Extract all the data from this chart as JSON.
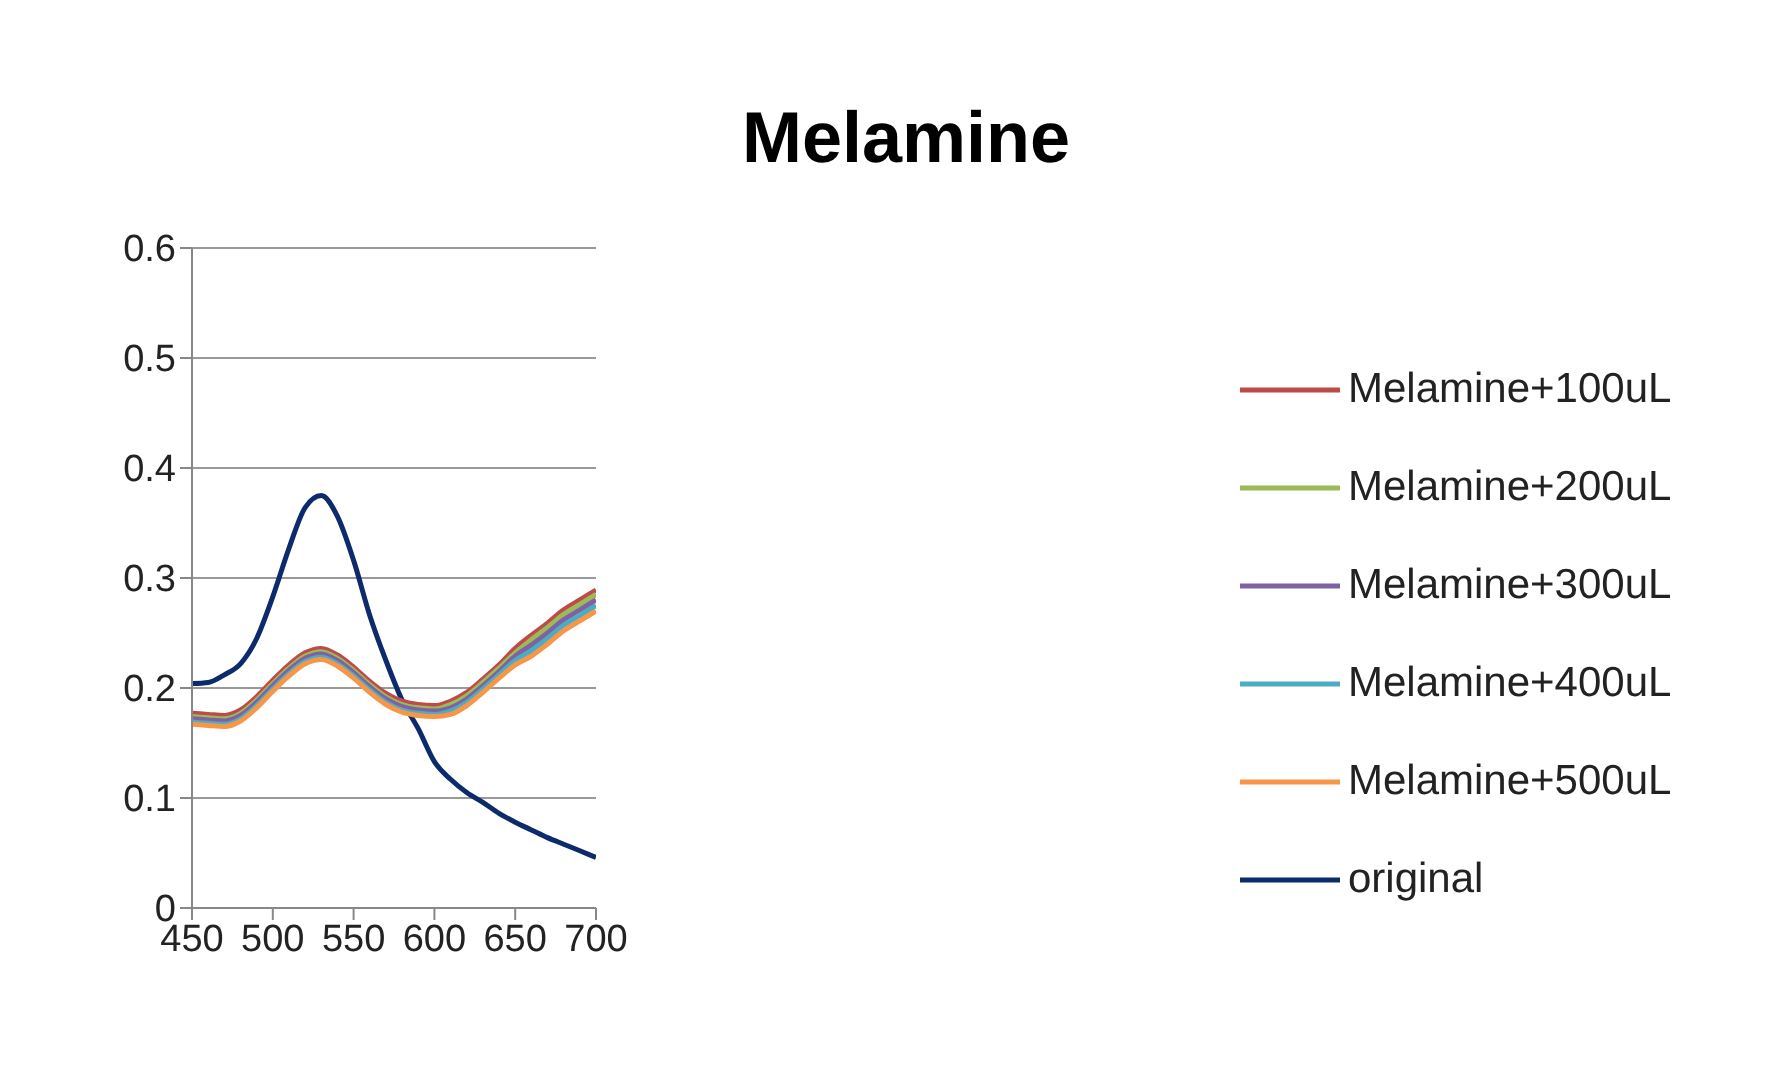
{
  "chart_data": {
    "type": "line",
    "title": "Melamine",
    "x": [
      450,
      460,
      470,
      480,
      490,
      500,
      510,
      520,
      530,
      540,
      550,
      560,
      570,
      580,
      590,
      600,
      610,
      620,
      630,
      640,
      650,
      660,
      670,
      680,
      690,
      700
    ],
    "series": [
      {
        "name": "original",
        "color": "#0d2b6b",
        "values": [
          0.204,
          0.205,
          0.212,
          0.222,
          0.245,
          0.283,
          0.327,
          0.364,
          0.375,
          0.356,
          0.316,
          0.266,
          0.225,
          0.189,
          0.163,
          0.133,
          0.117,
          0.105,
          0.096,
          0.086,
          0.078,
          0.071,
          0.064,
          0.058,
          0.052,
          0.046
        ]
      },
      {
        "name": "Melamine+100uL",
        "color": "#be4b48",
        "values": [
          0.177,
          0.176,
          0.175,
          0.18,
          0.192,
          0.207,
          0.221,
          0.232,
          0.236,
          0.23,
          0.219,
          0.206,
          0.195,
          0.188,
          0.185,
          0.184,
          0.188,
          0.196,
          0.208,
          0.221,
          0.236,
          0.248,
          0.259,
          0.271,
          0.28,
          0.289
        ]
      },
      {
        "name": "Melamine+200uL",
        "color": "#9bbb59",
        "values": [
          0.174,
          0.173,
          0.172,
          0.177,
          0.189,
          0.204,
          0.218,
          0.229,
          0.233,
          0.227,
          0.216,
          0.203,
          0.192,
          0.185,
          0.182,
          0.181,
          0.185,
          0.193,
          0.205,
          0.218,
          0.232,
          0.244,
          0.255,
          0.267,
          0.276,
          0.285
        ]
      },
      {
        "name": "Melamine+300uL",
        "color": "#7f62a1",
        "values": [
          0.172,
          0.171,
          0.17,
          0.175,
          0.187,
          0.202,
          0.216,
          0.227,
          0.231,
          0.225,
          0.214,
          0.201,
          0.19,
          0.183,
          0.18,
          0.179,
          0.182,
          0.19,
          0.202,
          0.215,
          0.229,
          0.239,
          0.25,
          0.262,
          0.271,
          0.28
        ]
      },
      {
        "name": "Melamine+400uL",
        "color": "#4bacc6",
        "values": [
          0.169,
          0.168,
          0.167,
          0.172,
          0.184,
          0.199,
          0.213,
          0.224,
          0.228,
          0.222,
          0.211,
          0.198,
          0.187,
          0.18,
          0.177,
          0.176,
          0.179,
          0.187,
          0.199,
          0.212,
          0.225,
          0.234,
          0.245,
          0.257,
          0.266,
          0.275
        ]
      },
      {
        "name": "Melamine+500uL",
        "color": "#f79646",
        "values": [
          0.167,
          0.166,
          0.165,
          0.17,
          0.182,
          0.197,
          0.211,
          0.222,
          0.226,
          0.22,
          0.209,
          0.196,
          0.185,
          0.178,
          0.175,
          0.174,
          0.176,
          0.184,
          0.196,
          0.209,
          0.221,
          0.229,
          0.24,
          0.252,
          0.261,
          0.27
        ]
      }
    ],
    "xlim": [
      450,
      700
    ],
    "xticks": [
      450,
      500,
      550,
      600,
      650,
      700
    ],
    "ylim": [
      0,
      0.6
    ],
    "yticks": [
      0,
      0.1,
      0.2,
      0.3,
      0.4,
      0.5,
      0.6
    ],
    "grid": "y",
    "legend": "right",
    "marker": "none",
    "line_style": "solid"
  }
}
